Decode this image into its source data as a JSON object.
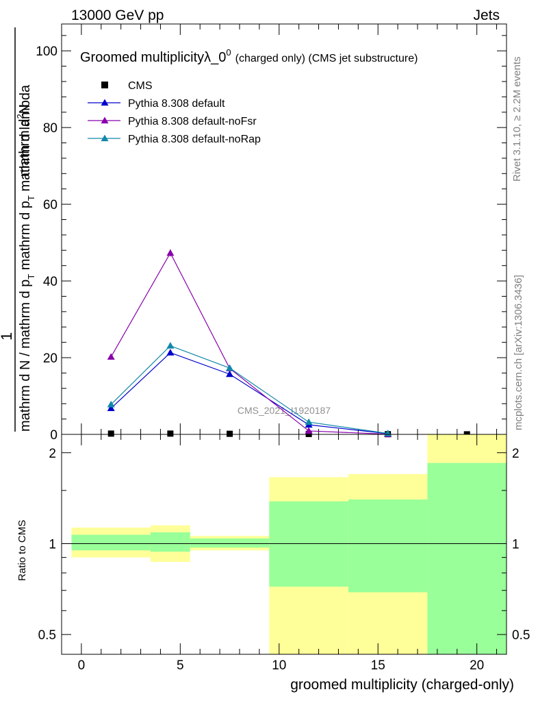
{
  "header": {
    "left": "13000 GeV pp",
    "right": "Jets"
  },
  "side_labels": {
    "rivet": "Rivet 3.1.10, ≥ 2.2M events",
    "mcplots": "mcplots.cern.ch [arXiv:1306.3436]"
  },
  "watermark": "CMS_2021_I1920187",
  "chart_data": [
    {
      "type": "line",
      "title_main": "Groomed multiplicityλ_0",
      "title_sup": "0",
      "title_tail": "(charged only) (CMS jet substructure)",
      "ylabel_main": "mathrm d N / mathrm d p",
      "ylabel_t": "T",
      "ylabel_mid": " mathrm d p",
      "ylabel_t2": "T",
      "ylabel_end": " mathrm d lambda",
      "ylabel_num": "mathrm d",
      "ylabel_sup": "2",
      "ylabel_n": "N",
      "ylabel_one": "1",
      "ylim": [
        0,
        107
      ],
      "xlim": [
        -1,
        21.5
      ],
      "yticks": [
        0,
        20,
        40,
        60,
        80,
        100
      ],
      "ytick_labels": [
        "0",
        "20",
        "40",
        "60",
        "80",
        "100"
      ],
      "series": [
        {
          "name": "CMS",
          "color": "#000000",
          "marker": "square",
          "x": [
            1.5,
            4.5,
            7.5,
            11.5,
            15.5,
            19.5
          ],
          "y": [
            0.2,
            0.2,
            0.15,
            0.1,
            0.05,
            0.02
          ]
        },
        {
          "name": "Pythia 8.308 default",
          "color": "#0000cc",
          "marker": "triangle",
          "x": [
            1.5,
            4.5,
            7.5,
            11.5,
            15.5
          ],
          "y": [
            6.8,
            21.3,
            15.7,
            2.5,
            0.2
          ]
        },
        {
          "name": "Pythia 8.308 default-noFsr",
          "color": "#8800aa",
          "marker": "triangle",
          "x": [
            1.5,
            4.5,
            7.5,
            11.5,
            15.5
          ],
          "y": [
            20.2,
            47.3,
            17.2,
            0.9,
            0.05
          ],
          "yerr": [
            0,
            0.9,
            0,
            0,
            0
          ]
        },
        {
          "name": "Pythia 8.308 default-noRap",
          "color": "#1188aa",
          "marker": "triangle",
          "x": [
            1.5,
            4.5,
            7.5,
            11.5,
            15.5
          ],
          "y": [
            7.8,
            23.1,
            17.3,
            3.2,
            0.25
          ]
        }
      ],
      "legend_position": "top-left"
    },
    {
      "type": "area",
      "ylabel": "Ratio to CMS",
      "xlabel": "groomed multiplicity (charged-only)",
      "ylim": [
        0.43,
        2.3
      ],
      "log_y": true,
      "yticks": [
        0.5,
        1,
        2
      ],
      "ytick_labels": [
        "0.5",
        "1",
        "2"
      ],
      "xticks": [
        0,
        5,
        10,
        15,
        20
      ],
      "xtick_labels": [
        "0",
        "5",
        "10",
        "15",
        "20"
      ],
      "bins": [
        {
          "x0": -0.5,
          "x1": 3.5,
          "yellow": [
            0.9,
            1.13
          ],
          "green": [
            0.95,
            1.07
          ]
        },
        {
          "x0": 3.5,
          "x1": 5.5,
          "yellow": [
            0.87,
            1.15
          ],
          "green": [
            0.94,
            1.09
          ]
        },
        {
          "x0": 5.5,
          "x1": 9.5,
          "yellow": [
            0.95,
            1.06
          ],
          "green": [
            0.97,
            1.04
          ]
        },
        {
          "x0": 9.5,
          "x1": 13.5,
          "yellow": [
            0.4,
            1.66
          ],
          "green": [
            0.72,
            1.38
          ]
        },
        {
          "x0": 13.5,
          "x1": 17.5,
          "yellow": [
            0.4,
            1.7
          ],
          "green": [
            0.69,
            1.4
          ]
        },
        {
          "x0": 17.5,
          "x1": 21.5,
          "yellow": [
            0.4,
            2.5
          ],
          "green": [
            0.4,
            1.85
          ]
        }
      ],
      "colors": {
        "yellow": "#ffff99",
        "green": "#99ff99",
        "reference_line": "#000000"
      }
    }
  ]
}
